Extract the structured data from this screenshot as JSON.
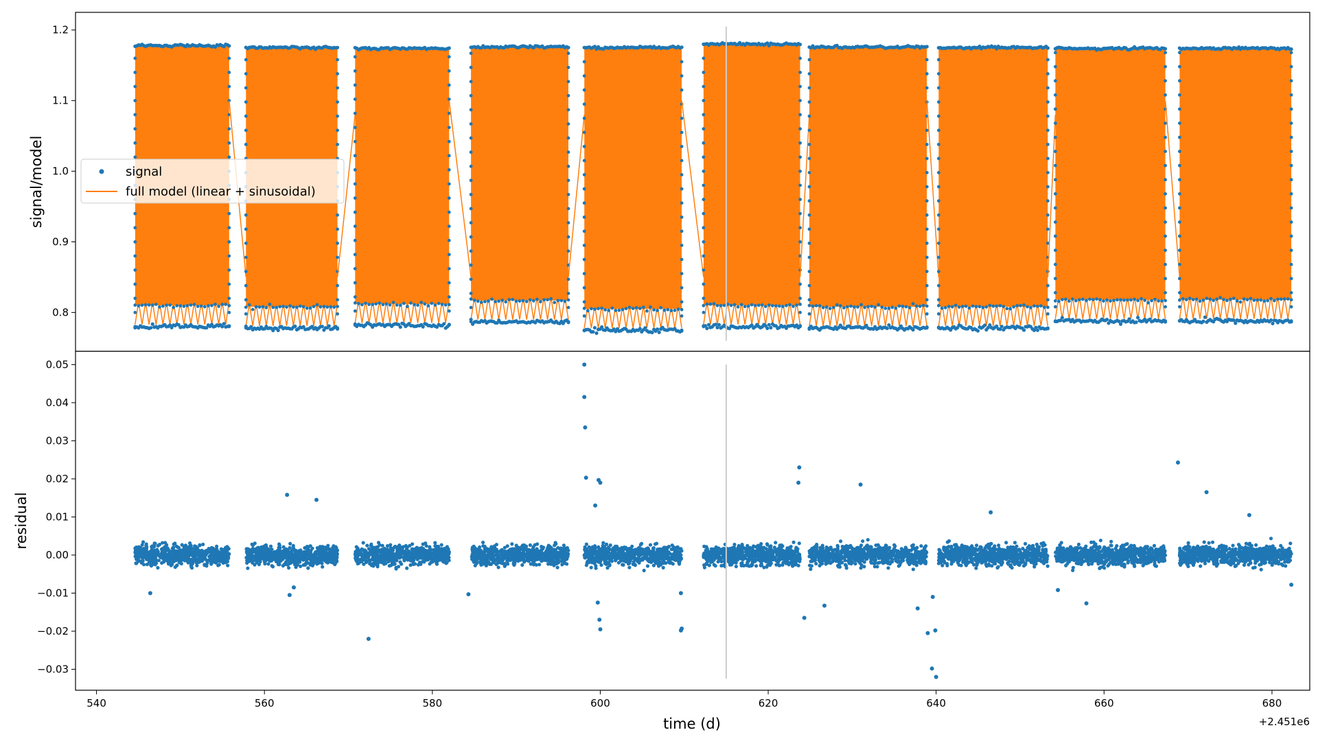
{
  "figure": {
    "colors": {
      "signal": "#1f77b4",
      "model": "#ff7f0e",
      "vline": "#cccccc",
      "frame": "#000000"
    }
  },
  "chart_data": [
    {
      "type": "scatter",
      "panel": "top",
      "title": "",
      "xlabel": "",
      "ylabel": "signal/model",
      "xlim": [
        537.5,
        684.5
      ],
      "ylim": [
        0.745,
        1.225
      ],
      "x_offset_label": "",
      "xticks": [],
      "yticks": [
        {
          "value": 0.8,
          "label": "0.8"
        },
        {
          "value": 0.9,
          "label": "0.9"
        },
        {
          "value": 1.0,
          "label": "1.0"
        },
        {
          "value": 1.1,
          "label": "1.1"
        },
        {
          "value": 1.2,
          "label": "1.2"
        }
      ],
      "grid": false,
      "legend_position": "center-left",
      "legend": [
        {
          "label": "signal",
          "marker": "dot",
          "color": "#1f77b4"
        },
        {
          "label": "full model (linear + sinusoidal)",
          "marker": "line",
          "color": "#ff7f0e"
        }
      ],
      "vertical_line_x": 615,
      "segments": [
        {
          "start": 544.6,
          "end": 555.8,
          "low": 0.78,
          "high": 1.178
        },
        {
          "start": 557.8,
          "end": 568.7,
          "low": 0.778,
          "high": 1.175
        },
        {
          "start": 570.8,
          "end": 582.0,
          "low": 0.782,
          "high": 1.174
        },
        {
          "start": 584.6,
          "end": 596.2,
          "low": 0.787,
          "high": 1.176
        },
        {
          "start": 598.1,
          "end": 609.7,
          "low": 0.775,
          "high": 1.175
        },
        {
          "start": 612.3,
          "end": 623.8,
          "low": 0.78,
          "high": 1.18
        },
        {
          "start": 624.9,
          "end": 638.9,
          "low": 0.778,
          "high": 1.176
        },
        {
          "start": 640.3,
          "end": 653.3,
          "low": 0.778,
          "high": 1.175
        },
        {
          "start": 654.2,
          "end": 667.3,
          "low": 0.788,
          "high": 1.174
        },
        {
          "start": 669.0,
          "end": 682.3,
          "low": 0.788,
          "high": 1.174
        }
      ]
    },
    {
      "type": "scatter",
      "panel": "bottom",
      "title": "",
      "xlabel": "time (d)",
      "ylabel": "residual",
      "xlim": [
        537.5,
        684.5
      ],
      "ylim": [
        -0.0355,
        0.0535
      ],
      "x_offset_label": "+2.451e6",
      "xticks": [
        {
          "value": 540,
          "label": "540"
        },
        {
          "value": 560,
          "label": "560"
        },
        {
          "value": 580,
          "label": "580"
        },
        {
          "value": 600,
          "label": "600"
        },
        {
          "value": 620,
          "label": "620"
        },
        {
          "value": 640,
          "label": "640"
        },
        {
          "value": 660,
          "label": "660"
        },
        {
          "value": 680,
          "label": "680"
        }
      ],
      "yticks": [
        {
          "value": -0.03,
          "label": "−0.03"
        },
        {
          "value": -0.02,
          "label": "−0.02"
        },
        {
          "value": -0.01,
          "label": "−0.01"
        },
        {
          "value": 0.0,
          "label": "0.00"
        },
        {
          "value": 0.01,
          "label": "0.01"
        },
        {
          "value": 0.02,
          "label": "0.02"
        },
        {
          "value": 0.03,
          "label": "0.03"
        },
        {
          "value": 0.04,
          "label": "0.04"
        },
        {
          "value": 0.05,
          "label": "0.05"
        }
      ],
      "grid": false,
      "vertical_line_x": 615,
      "typical_scatter": 0.004,
      "outliers": [
        {
          "x": 546.4,
          "y": -0.01
        },
        {
          "x": 562.7,
          "y": 0.0158
        },
        {
          "x": 563.0,
          "y": -0.0105
        },
        {
          "x": 563.5,
          "y": -0.0085
        },
        {
          "x": 566.2,
          "y": 0.0145
        },
        {
          "x": 572.4,
          "y": -0.022
        },
        {
          "x": 584.3,
          "y": -0.0103
        },
        {
          "x": 598.1,
          "y": 0.05
        },
        {
          "x": 598.1,
          "y": 0.0415
        },
        {
          "x": 598.2,
          "y": 0.0335
        },
        {
          "x": 598.3,
          "y": 0.0203
        },
        {
          "x": 599.8,
          "y": 0.0197
        },
        {
          "x": 600.0,
          "y": 0.019
        },
        {
          "x": 599.9,
          "y": -0.017
        },
        {
          "x": 600.0,
          "y": -0.0195
        },
        {
          "x": 599.7,
          "y": -0.0125
        },
        {
          "x": 599.4,
          "y": 0.013
        },
        {
          "x": 609.7,
          "y": -0.0193
        },
        {
          "x": 609.6,
          "y": -0.0198
        },
        {
          "x": 609.6,
          "y": -0.01
        },
        {
          "x": 623.7,
          "y": 0.023
        },
        {
          "x": 623.6,
          "y": 0.019
        },
        {
          "x": 624.3,
          "y": -0.0165
        },
        {
          "x": 631.0,
          "y": 0.0185
        },
        {
          "x": 639.5,
          "y": -0.0298
        },
        {
          "x": 640.0,
          "y": -0.032
        },
        {
          "x": 639.0,
          "y": -0.0205
        },
        {
          "x": 639.9,
          "y": -0.0198
        },
        {
          "x": 637.8,
          "y": -0.014
        },
        {
          "x": 639.6,
          "y": -0.011
        },
        {
          "x": 646.5,
          "y": 0.0112
        },
        {
          "x": 668.8,
          "y": 0.0243
        },
        {
          "x": 672.2,
          "y": 0.0165
        },
        {
          "x": 677.3,
          "y": 0.0105
        },
        {
          "x": 682.3,
          "y": -0.0078
        },
        {
          "x": 654.5,
          "y": -0.0092
        },
        {
          "x": 657.9,
          "y": -0.0127
        },
        {
          "x": 626.7,
          "y": -0.0133
        }
      ]
    }
  ]
}
